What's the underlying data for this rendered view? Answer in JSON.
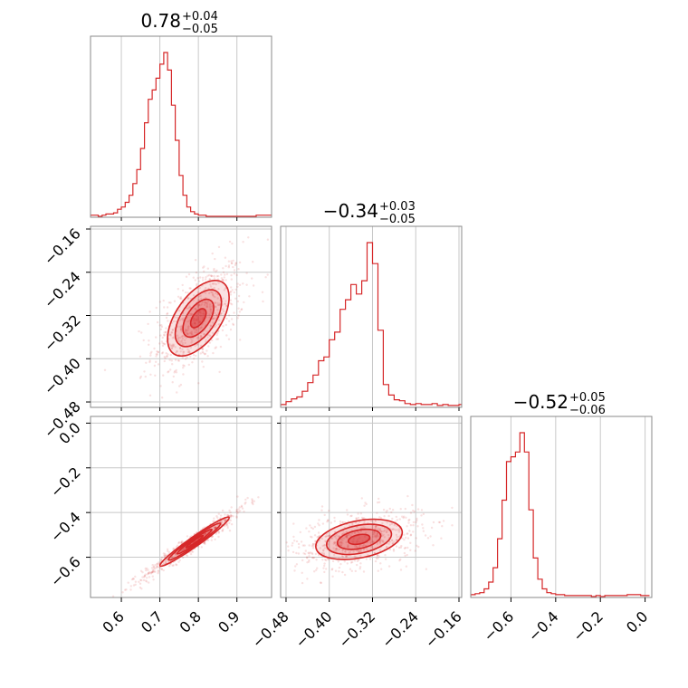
{
  "chart_data": {
    "type": "corner",
    "color": "#d62728",
    "parameters": [
      {
        "title_value": "0.78",
        "title_plus": "+0.04",
        "title_minus": "−0.05",
        "median": 0.78,
        "range": [
          0.52,
          0.99
        ]
      },
      {
        "title_value": "−0.34",
        "title_plus": "+0.03",
        "title_minus": "−0.05",
        "median": -0.34,
        "range": [
          -0.49,
          -0.155
        ]
      },
      {
        "title_value": "−0.52",
        "title_plus": "+0.05",
        "title_minus": "−0.06",
        "median": -0.52,
        "range": [
          -0.78,
          0.03
        ]
      }
    ],
    "ticks": {
      "p0": [
        0.6,
        0.7,
        0.8,
        0.9
      ],
      "p1": [
        -0.48,
        -0.4,
        -0.32,
        -0.24,
        -0.16
      ],
      "p2": [
        -0.6,
        -0.4,
        -0.2,
        0.0
      ]
    },
    "tick_labels": {
      "p0": [
        "0.6",
        "0.7",
        "0.8",
        "0.9"
      ],
      "p1": [
        "−0.48",
        "−0.40",
        "−0.32",
        "−0.24",
        "−0.16"
      ],
      "p2": [
        "−0.6",
        "−0.4",
        "−0.2",
        "0.0"
      ]
    },
    "histograms": [
      {
        "edges_start": 0.52,
        "bin_width": 0.01,
        "counts": [
          1,
          1,
          0,
          1,
          2,
          2,
          3,
          6,
          8,
          12,
          18,
          28,
          40,
          58,
          80,
          100,
          108,
          118,
          130,
          140,
          125,
          95,
          65,
          35,
          18,
          8,
          4,
          2,
          1,
          1,
          0,
          0,
          0,
          0,
          0,
          0,
          0,
          0,
          0,
          0,
          0,
          0,
          0,
          1,
          1,
          1,
          1
        ]
      },
      {
        "edges_start": -0.49,
        "bin_width": 0.01,
        "counts": [
          2,
          5,
          8,
          10,
          16,
          25,
          33,
          48,
          52,
          70,
          78,
          102,
          112,
          128,
          118,
          132,
          172,
          150,
          80,
          23,
          12,
          7,
          6,
          3,
          2,
          3,
          2,
          2,
          3,
          1,
          2,
          1,
          1,
          2
        ]
      },
      {
        "edges_start": -0.78,
        "bin_width": 0.02,
        "counts": [
          2,
          3,
          4,
          8,
          15,
          30,
          60,
          100,
          140,
          145,
          150,
          170,
          150,
          90,
          40,
          18,
          8,
          4,
          3,
          2,
          2,
          1,
          1,
          1,
          1,
          1,
          1,
          0,
          1,
          0,
          1,
          1,
          1,
          1,
          1,
          2,
          2,
          2,
          1,
          1
        ]
      }
    ],
    "correlations": [
      {
        "x": 0,
        "y": 1,
        "center": [
          0.8,
          -0.325
        ],
        "sigma": [
          0.04,
          0.035
        ],
        "rho": 0.55
      },
      {
        "x": 0,
        "y": 2,
        "center": [
          0.79,
          -0.53
        ],
        "sigma": [
          0.045,
          0.055
        ],
        "rho": 0.97
      },
      {
        "x": 1,
        "y": 2,
        "center": [
          -0.345,
          -0.52
        ],
        "sigma": [
          0.04,
          0.045
        ],
        "rho": 0.35
      }
    ],
    "grid": true
  }
}
